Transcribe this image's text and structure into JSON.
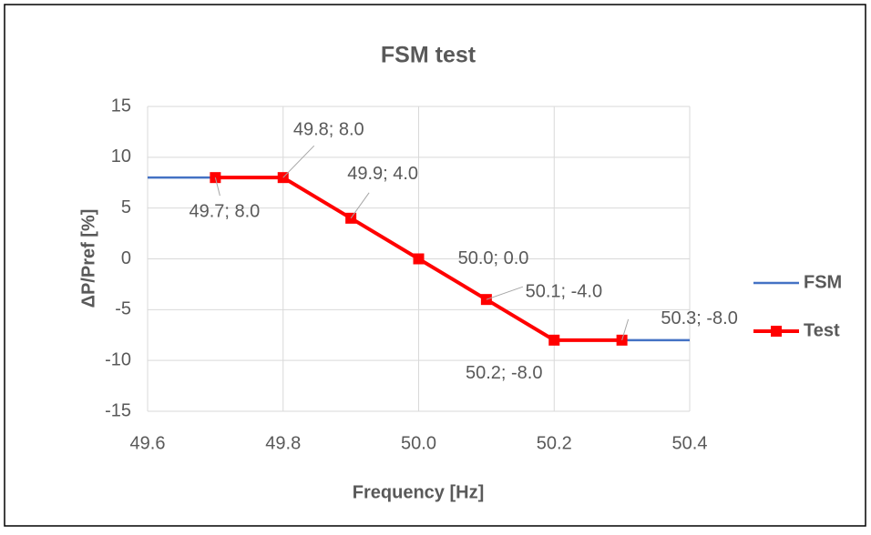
{
  "chart_data": {
    "type": "line",
    "title": "FSM test",
    "xlabel": "Frequency [Hz]",
    "ylabel": "ΔP/Pref [%]",
    "xlim": [
      49.6,
      50.4
    ],
    "xticks": [
      49.6,
      49.8,
      {
        "value": 50,
        "label": "50.0"
      },
      50.2,
      50.4
    ],
    "ylim": [
      -15,
      15
    ],
    "yticks": [
      -15,
      -10,
      -5,
      0,
      5,
      10,
      15
    ],
    "grid": true,
    "legend": "right",
    "series": [
      {
        "name": "FSM",
        "color": "#4472c4",
        "x": [
          49.6,
          49.8,
          50.2,
          50.4
        ],
        "values": [
          8,
          8,
          -8,
          -8
        ]
      },
      {
        "name": "Test",
        "color": "#ff0000",
        "marker": "square",
        "x": [
          49.7,
          49.8,
          49.9,
          50.0,
          50.1,
          50.2,
          50.3
        ],
        "values": [
          8,
          8,
          4,
          0,
          -4,
          -8,
          -8
        ],
        "value_labels": [
          "49.7; 8.0",
          "49.8; 8.0",
          "49.9; 4.0",
          "50.0; 0.0",
          "50.1; -4.0",
          "50.2; -8.0",
          "50.3; -8.0"
        ]
      }
    ]
  }
}
